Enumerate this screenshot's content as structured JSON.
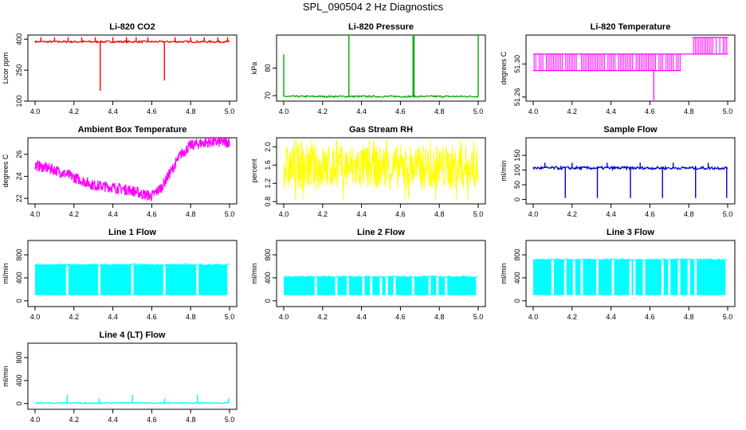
{
  "page": {
    "title": "SPL_090504  2 Hz Diagnostics"
  },
  "chart_data": [
    {
      "type": "line",
      "title": "Li-820 CO2",
      "color": "#ff0000",
      "ylabel": "Licor ppm",
      "xlim": [
        4.0,
        5.0
      ],
      "xticks": [
        "4.0",
        "4.2",
        "4.4",
        "4.6",
        "4.8",
        "5.0"
      ],
      "ylim": [
        100,
        420
      ],
      "yticks": [
        100,
        250,
        400
      ],
      "ytick_labels": [
        "100",
        "250",
        "400"
      ],
      "style": "baseline-spikes",
      "series": [
        {
          "name": "CO2",
          "band": [
            383,
            392
          ],
          "spikes": [
            [
              4.03,
              410
            ],
            [
              4.1,
              410
            ],
            [
              4.17,
              410
            ],
            [
              4.24,
              410
            ],
            [
              4.31,
              410
            ],
            [
              4.335,
              150
            ],
            [
              4.4,
              410
            ],
            [
              4.47,
              410
            ],
            [
              4.52,
              410
            ],
            [
              4.58,
              410
            ],
            [
              4.665,
              200
            ],
            [
              4.72,
              410
            ],
            [
              4.8,
              410
            ],
            [
              4.87,
              410
            ],
            [
              4.94,
              410
            ],
            [
              4.99,
              410
            ]
          ]
        }
      ]
    },
    {
      "type": "line",
      "title": "Li-820 Pressure",
      "color": "#00aa00",
      "ylabel": "kPa",
      "xlim": [
        4.0,
        5.0
      ],
      "xticks": [
        "4.0",
        "4.2",
        "4.4",
        "4.6",
        "4.8",
        "5.0"
      ],
      "ylim": [
        68,
        92
      ],
      "yticks": [
        70,
        80
      ],
      "ytick_labels": [
        "70",
        "80"
      ],
      "style": "baseline-spikes",
      "series": [
        {
          "name": "Pressure",
          "band": [
            69.4,
            70.0
          ],
          "spikes": [
            [
              4.0,
              85
            ],
            [
              4.335,
              92
            ],
            [
              4.665,
              92
            ],
            [
              4.67,
              92
            ],
            [
              5.0,
              92
            ]
          ]
        }
      ]
    },
    {
      "type": "line",
      "title": "Li-820 Temperature",
      "color": "#ff00ff",
      "ylabel": "degrees C",
      "xlim": [
        4.0,
        5.0
      ],
      "xticks": [
        "4.0",
        "4.2",
        "4.4",
        "4.6",
        "4.8",
        "5.0"
      ],
      "ylim": [
        51.255,
        51.335
      ],
      "yticks": [
        51.26,
        51.3
      ],
      "ytick_labels": [
        "51.26",
        "51.30"
      ],
      "style": "steps",
      "series": [
        {
          "name": "Temperature",
          "segments": [
            [
              4.0,
              4.76,
              51.292,
              51.312
            ],
            [
              4.76,
              4.82,
              51.312,
              51.312
            ],
            [
              4.82,
              5.0,
              51.312,
              51.332
            ]
          ],
          "spikes": [
            [
              4.62,
              51.256
            ]
          ]
        }
      ]
    },
    {
      "type": "line",
      "title": "Ambient Box Temperature",
      "color": "#ff00ff",
      "ylabel": "degrees C",
      "xlim": [
        4.0,
        5.0
      ],
      "xticks": [
        "4.0",
        "4.2",
        "4.4",
        "4.6",
        "4.8",
        "5.0"
      ],
      "ylim": [
        21.5,
        27.5
      ],
      "yticks": [
        22,
        24,
        26
      ],
      "ytick_labels": [
        "22",
        "24",
        "26"
      ],
      "style": "noisy-curve",
      "series": [
        {
          "name": "Box Temp",
          "noise": 0.5,
          "x": [
            4.0,
            4.1,
            4.2,
            4.3,
            4.4,
            4.5,
            4.55,
            4.6,
            4.65,
            4.7,
            4.75,
            4.8,
            4.85,
            4.9,
            5.0
          ],
          "y": [
            25.0,
            24.6,
            23.9,
            23.2,
            23.0,
            22.7,
            22.4,
            22.2,
            23.0,
            24.5,
            26.0,
            26.8,
            27.0,
            27.1,
            27.1
          ]
        }
      ]
    },
    {
      "type": "line",
      "title": "Gas Stream RH",
      "color": "#ffff00",
      "ylabel": "percent",
      "xlim": [
        4.0,
        5.0
      ],
      "xticks": [
        "4.0",
        "4.2",
        "4.4",
        "4.6",
        "4.8",
        "5.0"
      ],
      "ylim": [
        0.75,
        2.2
      ],
      "yticks": [
        0.8,
        1.2,
        1.6,
        2.0
      ],
      "ytick_labels": [
        "0.8",
        "1.2",
        "1.6",
        "2.0"
      ],
      "style": "noise-band",
      "series": [
        {
          "name": "RH",
          "band": [
            1.05,
            2.05
          ],
          "outliers": [
            0.85,
            2.15
          ]
        }
      ]
    },
    {
      "type": "line",
      "title": "Sample Flow",
      "color": "#0000cc",
      "ylabel": "ml/min",
      "xlim": [
        4.0,
        5.0
      ],
      "xticks": [
        "4.0",
        "4.2",
        "4.4",
        "4.6",
        "4.8",
        "5.0"
      ],
      "ylim": [
        -15,
        210
      ],
      "yticks": [
        0,
        50,
        100,
        150
      ],
      "ytick_labels": [
        "0",
        "50",
        "100",
        "150"
      ],
      "style": "baseline-spikes",
      "series": [
        {
          "name": "Sample",
          "band": [
            102,
            112
          ],
          "spikes": [
            [
              4.165,
              5
            ],
            [
              4.33,
              5
            ],
            [
              4.5,
              5
            ],
            [
              4.665,
              5
            ],
            [
              4.835,
              5
            ],
            [
              4.995,
              5
            ],
            [
              4.06,
              125
            ],
            [
              4.2,
              125
            ],
            [
              4.38,
              125
            ],
            [
              4.55,
              125
            ],
            [
              4.72,
              125
            ],
            [
              4.9,
              125
            ]
          ]
        }
      ]
    },
    {
      "type": "line",
      "title": "Line 1 Flow",
      "color": "#00ffff",
      "ylabel": "ml/min",
      "xlim": [
        4.0,
        5.0
      ],
      "xticks": [
        "4.0",
        "4.2",
        "4.4",
        "4.6",
        "4.8",
        "5.0"
      ],
      "ylim": [
        -100,
        1050
      ],
      "yticks": [
        0,
        400,
        800
      ],
      "ytick_labels": [
        "0",
        "400",
        "800"
      ],
      "style": "block",
      "series": [
        {
          "name": "Line 1",
          "band": [
            100,
            630
          ],
          "gaps": [
            4.165,
            4.33,
            4.5,
            4.665,
            4.835,
            4.995
          ]
        }
      ]
    },
    {
      "type": "line",
      "title": "Line 2 Flow",
      "color": "#00ffff",
      "ylabel": "ml/min",
      "xlim": [
        4.0,
        5.0
      ],
      "xticks": [
        "4.0",
        "4.2",
        "4.4",
        "4.6",
        "4.8",
        "5.0"
      ],
      "ylim": [
        -100,
        1050
      ],
      "yticks": [
        0,
        400,
        800
      ],
      "ytick_labels": [
        "0",
        "400",
        "800"
      ],
      "style": "block",
      "series": [
        {
          "name": "Line 2",
          "band": [
            100,
            420
          ],
          "gaps": [
            4.165,
            4.27,
            4.33,
            4.41,
            4.45,
            4.5,
            4.53,
            4.57,
            4.665,
            4.75,
            4.79,
            4.835,
            4.995
          ]
        }
      ]
    },
    {
      "type": "line",
      "title": "Line 3 Flow",
      "color": "#00ffff",
      "ylabel": "ml/min",
      "xlim": [
        4.0,
        5.0
      ],
      "xticks": [
        "4.0",
        "4.2",
        "4.4",
        "4.6",
        "4.8",
        "5.0"
      ],
      "ylim": [
        -100,
        1050
      ],
      "yticks": [
        0,
        400,
        800
      ],
      "ytick_labels": [
        "0",
        "400",
        "800"
      ],
      "style": "block",
      "series": [
        {
          "name": "Line 3",
          "band": [
            100,
            720
          ],
          "gaps": [
            4.1,
            4.165,
            4.21,
            4.25,
            4.33,
            4.41,
            4.5,
            4.52,
            4.57,
            4.665,
            4.7,
            4.75,
            4.8,
            4.835,
            4.995
          ]
        }
      ]
    },
    {
      "type": "line",
      "title": "Line 4 (LT) Flow",
      "color": "#00ffff",
      "ylabel": "ml/min",
      "xlim": [
        4.0,
        5.0
      ],
      "xticks": [
        "4.0",
        "4.2",
        "4.4",
        "4.6",
        "4.8",
        "5.0"
      ],
      "ylim": [
        -100,
        1050
      ],
      "yticks": [
        0,
        400,
        800
      ],
      "ytick_labels": [
        "0",
        "400",
        "800"
      ],
      "style": "baseline-spikes",
      "series": [
        {
          "name": "Line 4",
          "band": [
            0,
            20
          ],
          "spikes": [
            [
              4.165,
              150
            ],
            [
              4.33,
              90
            ],
            [
              4.5,
              150
            ],
            [
              4.665,
              90
            ],
            [
              4.835,
              150
            ],
            [
              4.995,
              90
            ]
          ]
        }
      ]
    }
  ]
}
